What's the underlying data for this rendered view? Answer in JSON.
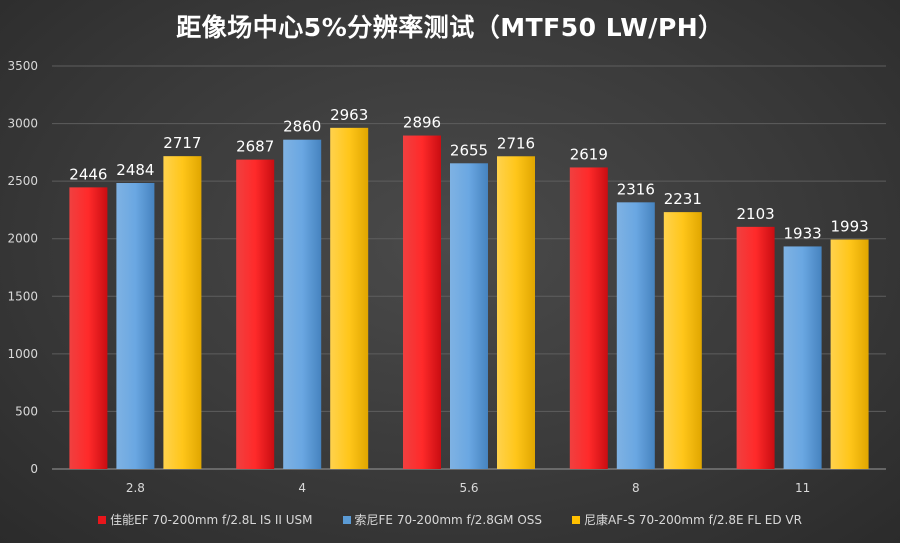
{
  "chart_data": {
    "type": "bar",
    "title": "距像场中心5%分辨率测试（MTF50 LW/PH）",
    "xlabel": "",
    "ylabel": "",
    "categories": [
      "2.8",
      "4",
      "5.6",
      "8",
      "11"
    ],
    "ylim": [
      0,
      3500
    ],
    "yticks": [
      "0",
      "500",
      "1000",
      "1500",
      "2000",
      "2500",
      "3000",
      "3500"
    ],
    "grid": true,
    "legend_position": "bottom",
    "series": [
      {
        "name": "佳能EF 70-200mm f/2.8L IS II USM",
        "color": "#e8161b",
        "values": [
          2446,
          2687,
          2896,
          2619,
          2103
        ]
      },
      {
        "name": "索尼FE 70-200mm f/2.8GM OSS",
        "color": "#5b9bd5",
        "values": [
          2484,
          2860,
          2655,
          2316,
          1933
        ]
      },
      {
        "name": "尼康AF-S 70-200mm f/2.8E FL ED VR",
        "color": "#ffc000",
        "values": [
          2717,
          2963,
          2716,
          2231,
          1993
        ]
      }
    ]
  }
}
